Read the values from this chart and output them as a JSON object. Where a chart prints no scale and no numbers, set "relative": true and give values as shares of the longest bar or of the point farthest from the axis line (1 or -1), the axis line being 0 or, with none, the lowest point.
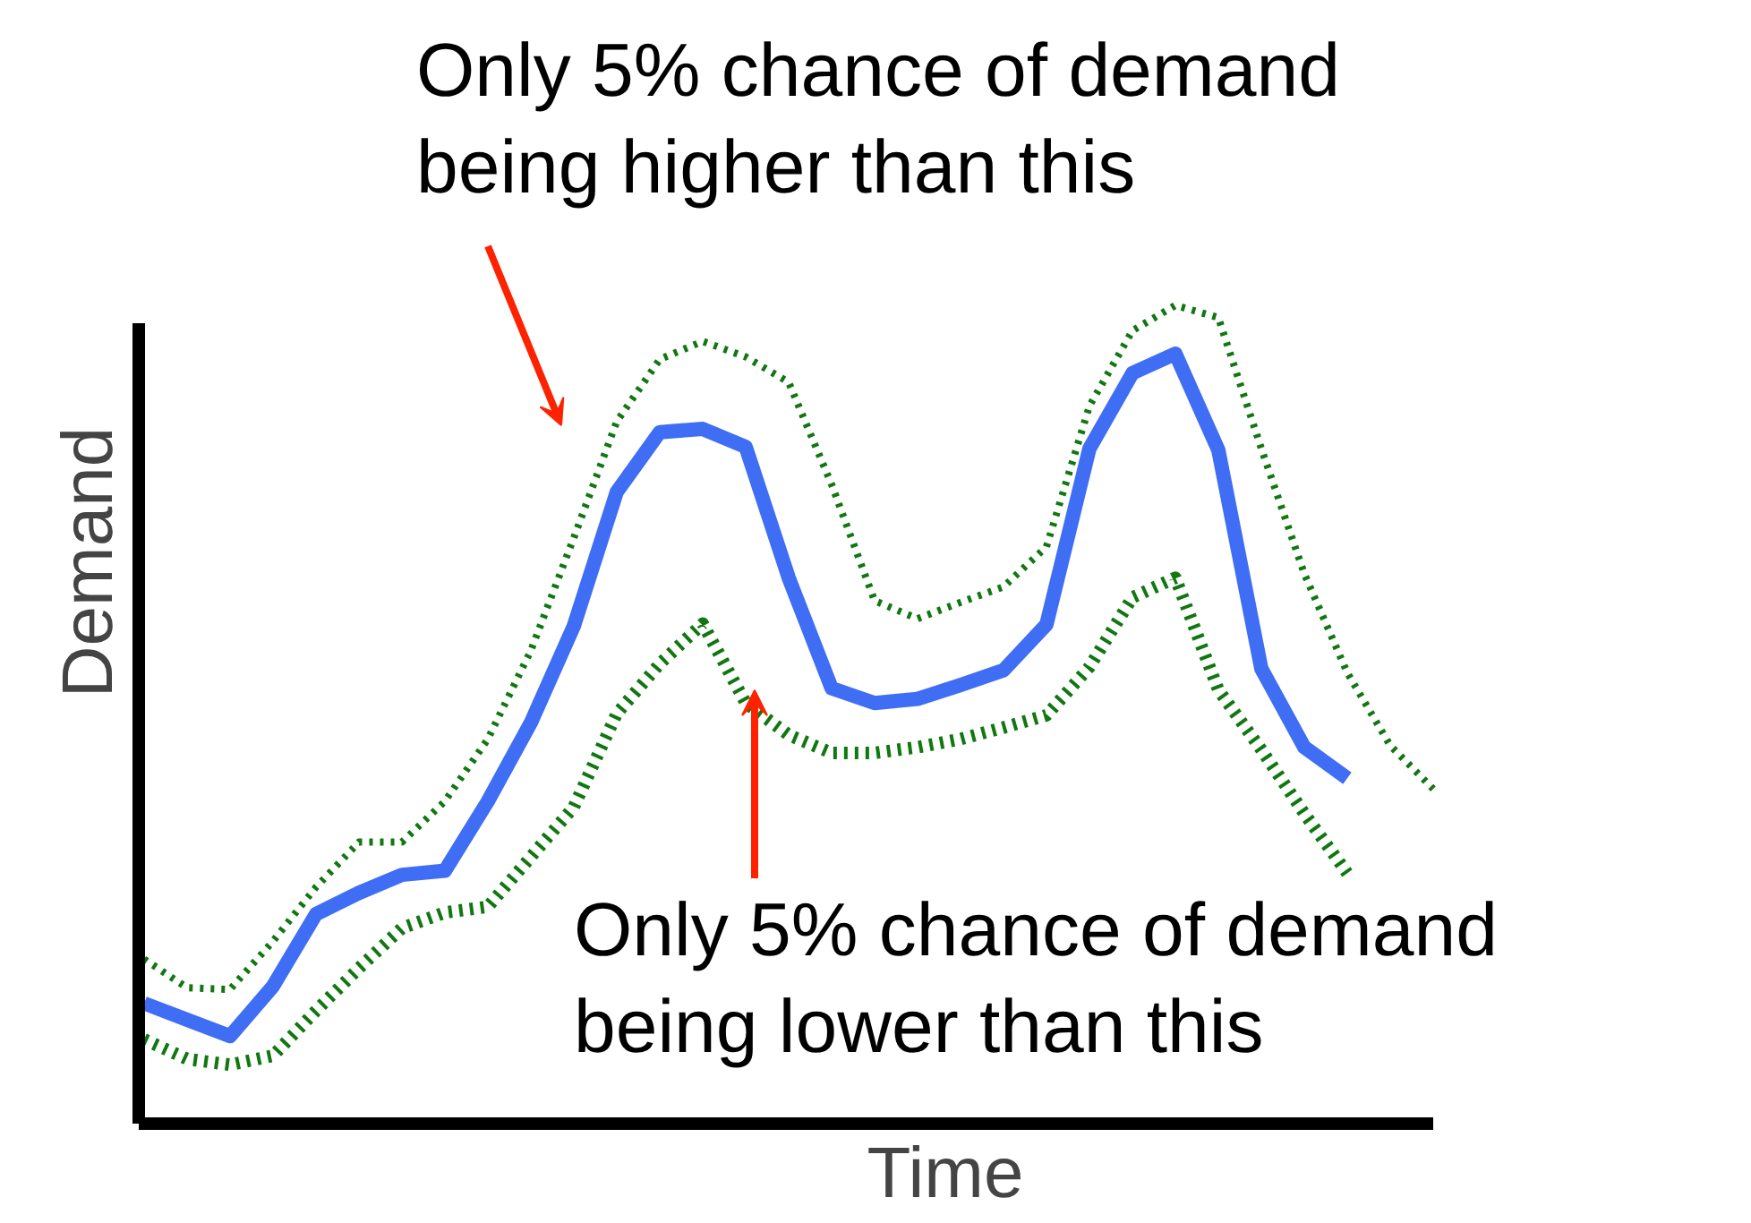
{
  "chart_data": {
    "type": "line",
    "relative": true,
    "xlabel": "Time",
    "ylabel": "Demand",
    "grid": false,
    "categories": [
      null,
      null,
      null,
      null,
      null,
      null,
      null,
      null,
      null,
      null,
      null,
      null,
      null,
      null,
      null,
      null,
      null,
      null,
      null,
      null,
      null,
      null,
      null,
      null,
      null,
      null,
      null,
      null,
      null,
      null,
      null
    ],
    "series": [
      {
        "color": "#3f6ef5",
        "line_style": "solid",
        "values": [
          0.147,
          0.127,
          0.107,
          0.168,
          0.256,
          0.282,
          0.304,
          0.309,
          0.394,
          0.49,
          0.608,
          0.772,
          0.845,
          0.849,
          0.827,
          0.667,
          0.532,
          0.514,
          0.519,
          0.536,
          0.554,
          0.61,
          0.825,
          0.917,
          0.941,
          0.823,
          0.556,
          0.46,
          0.422,
          null,
          null
        ]
      },
      {
        "color": "#117711",
        "line_style": "dotted",
        "values": [
          0.201,
          0.166,
          0.164,
          0.223,
          0.289,
          0.344,
          0.344,
          0.394,
          0.47,
          0.578,
          0.716,
          0.858,
          0.934,
          0.956,
          0.937,
          0.906,
          0.781,
          0.639,
          0.617,
          0.637,
          0.656,
          0.705,
          0.877,
          0.969,
          1.0,
          0.985,
          0.825,
          0.672,
          0.551,
          0.462,
          0.409
        ]
      },
      {
        "color": "#117711",
        "line_style": "dotted",
        "values": [
          0.103,
          0.079,
          0.072,
          0.083,
          0.138,
          0.19,
          0.239,
          0.258,
          0.265,
          0.326,
          0.387,
          0.501,
          0.562,
          0.611,
          0.514,
          0.475,
          0.453,
          0.453,
          0.46,
          0.47,
          0.484,
          0.499,
          0.558,
          0.643,
          0.667,
          0.53,
          0.457,
          0.379,
          0.306,
          null,
          null
        ]
      }
    ],
    "annotations": [
      "Only 5% chance of demand\nbeing higher than this",
      "Only 5% chance of demand\nbeing lower than this"
    ]
  }
}
